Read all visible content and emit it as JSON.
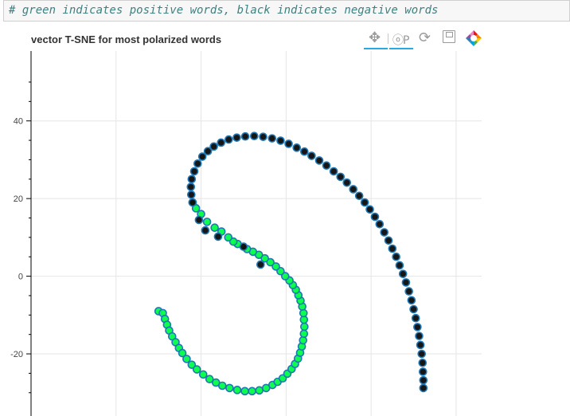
{
  "code_cell": {
    "comment": "# green indicates positive words, black indicates negative words"
  },
  "plot": {
    "title": "vector T-SNE for most polarized words",
    "toolbar": [
      {
        "name": "pan-tool",
        "icon": "pan-icon",
        "active": true
      },
      {
        "name": "wheel-zoom-tool",
        "icon": "wheel-zoom-icon",
        "active": true
      },
      {
        "name": "reset-tool",
        "icon": "reset-icon",
        "active": false
      },
      {
        "name": "save-tool",
        "icon": "save-icon",
        "active": false
      },
      {
        "name": "bokeh-logo",
        "icon": "bokeh-logo-icon",
        "active": false
      }
    ],
    "colors": {
      "positive_fill": "#00ff44",
      "negative_fill": "#0a0a0a",
      "outline": "#1f77b4",
      "grid": "#e5e5e5",
      "axis": "#000000",
      "toolbar_active": "#26aae1"
    }
  },
  "chart_data": {
    "type": "scatter",
    "title": "vector T-SNE for most polarized words",
    "xlabel": "",
    "ylabel": "",
    "ylim": [
      -36,
      58
    ],
    "xlim": [
      -40,
      66
    ],
    "yticks": [
      40,
      20,
      0,
      -20
    ],
    "ytick_labels": [
      "40",
      "20",
      "0",
      "-20"
    ],
    "grid": true,
    "series": [
      {
        "name": "positive",
        "color": "#00ff44",
        "points": [
          [
            -10,
            -9
          ],
          [
            -9,
            -9.5
          ],
          [
            -8.5,
            -11
          ],
          [
            -8,
            -12.5
          ],
          [
            -7.5,
            -14
          ],
          [
            -6.8,
            -15.5
          ],
          [
            -6,
            -17
          ],
          [
            -5.2,
            -18.5
          ],
          [
            -4.4,
            -19.8
          ],
          [
            -3.4,
            -21.3
          ],
          [
            -2.2,
            -22.8
          ],
          [
            -1,
            -24
          ],
          [
            0.5,
            -25.3
          ],
          [
            2,
            -26.5
          ],
          [
            3.5,
            -27.4
          ],
          [
            5,
            -28.2
          ],
          [
            6.7,
            -28.8
          ],
          [
            8.5,
            -29.3
          ],
          [
            10.3,
            -29.6
          ],
          [
            12,
            -29.6
          ],
          [
            13.7,
            -29.4
          ],
          [
            15.3,
            -28.8
          ],
          [
            16.8,
            -28
          ],
          [
            18,
            -27.2
          ],
          [
            19.2,
            -26.3
          ],
          [
            20.3,
            -25.1
          ],
          [
            21.3,
            -23.9
          ],
          [
            22.1,
            -22.6
          ],
          [
            22.8,
            -21.2
          ],
          [
            23.3,
            -19.7
          ],
          [
            23.7,
            -18.1
          ],
          [
            24,
            -16.5
          ],
          [
            24.2,
            -14.8
          ],
          [
            24.3,
            -13
          ],
          [
            24.2,
            -11.2
          ],
          [
            24.1,
            -9.5
          ],
          [
            23.8,
            -7.8
          ],
          [
            23.4,
            -6.3
          ],
          [
            22.9,
            -4.9
          ],
          [
            22.3,
            -3.5
          ],
          [
            21.6,
            -2.3
          ],
          [
            20.8,
            -1.1
          ],
          [
            19.8,
            0
          ],
          [
            18.7,
            1.3
          ],
          [
            17.6,
            2.5
          ],
          [
            16.3,
            3.6
          ],
          [
            15,
            4.6
          ],
          [
            13.6,
            5.5
          ],
          [
            12.2,
            6.3
          ],
          [
            10.8,
            7
          ],
          [
            8.6,
            8.3
          ],
          [
            7.6,
            8.9
          ],
          [
            6.4,
            10
          ],
          [
            4.8,
            11.5
          ],
          [
            3.2,
            12.5
          ],
          [
            1.4,
            14
          ],
          [
            0,
            16
          ],
          [
            -1.2,
            17.5
          ],
          [
            -2,
            19
          ]
        ]
      },
      {
        "name": "negative",
        "color": "#0a0a0a",
        "points": [
          [
            -2,
            19
          ],
          [
            -2.3,
            21
          ],
          [
            -2.4,
            23
          ],
          [
            -2.2,
            25
          ],
          [
            -1.6,
            27
          ],
          [
            -0.8,
            29
          ],
          [
            0.3,
            30.8
          ],
          [
            1.6,
            32.2
          ],
          [
            3,
            33.4
          ],
          [
            4.7,
            34.4
          ],
          [
            6.5,
            35.2
          ],
          [
            8.4,
            35.7
          ],
          [
            10.4,
            36
          ],
          [
            12.5,
            36.1
          ],
          [
            14.6,
            35.9
          ],
          [
            16.7,
            35.5
          ],
          [
            18.7,
            34.9
          ],
          [
            20.6,
            34.1
          ],
          [
            22.5,
            33.1
          ],
          [
            24.3,
            32.1
          ],
          [
            26,
            31
          ],
          [
            27.8,
            29.8
          ],
          [
            29.5,
            28.5
          ],
          [
            31.2,
            27
          ],
          [
            32.8,
            25.6
          ],
          [
            34.3,
            24.1
          ],
          [
            35.8,
            22.4
          ],
          [
            37.2,
            20.7
          ],
          [
            38.5,
            19
          ],
          [
            39.7,
            17.2
          ],
          [
            40.9,
            15.3
          ],
          [
            42,
            13.4
          ],
          [
            43.1,
            11.3
          ],
          [
            44.1,
            9.2
          ],
          [
            45,
            7.1
          ],
          [
            45.9,
            5
          ],
          [
            46.7,
            2.8
          ],
          [
            47.5,
            0.6
          ],
          [
            48.2,
            -1.6
          ],
          [
            48.9,
            -3.9
          ],
          [
            49.5,
            -6.2
          ],
          [
            50,
            -8.5
          ],
          [
            50.5,
            -10.8
          ],
          [
            50.9,
            -13.1
          ],
          [
            51.3,
            -15.4
          ],
          [
            51.6,
            -17.7
          ],
          [
            51.9,
            -20
          ],
          [
            52.1,
            -22.3
          ],
          [
            52.2,
            -24.6
          ],
          [
            52.3,
            -26.8
          ],
          [
            52.3,
            -28.8
          ],
          [
            14,
            3
          ],
          [
            10,
            7.6
          ],
          [
            4,
            10.2
          ],
          [
            1,
            11.8
          ],
          [
            -0.5,
            14.5
          ]
        ]
      }
    ]
  }
}
